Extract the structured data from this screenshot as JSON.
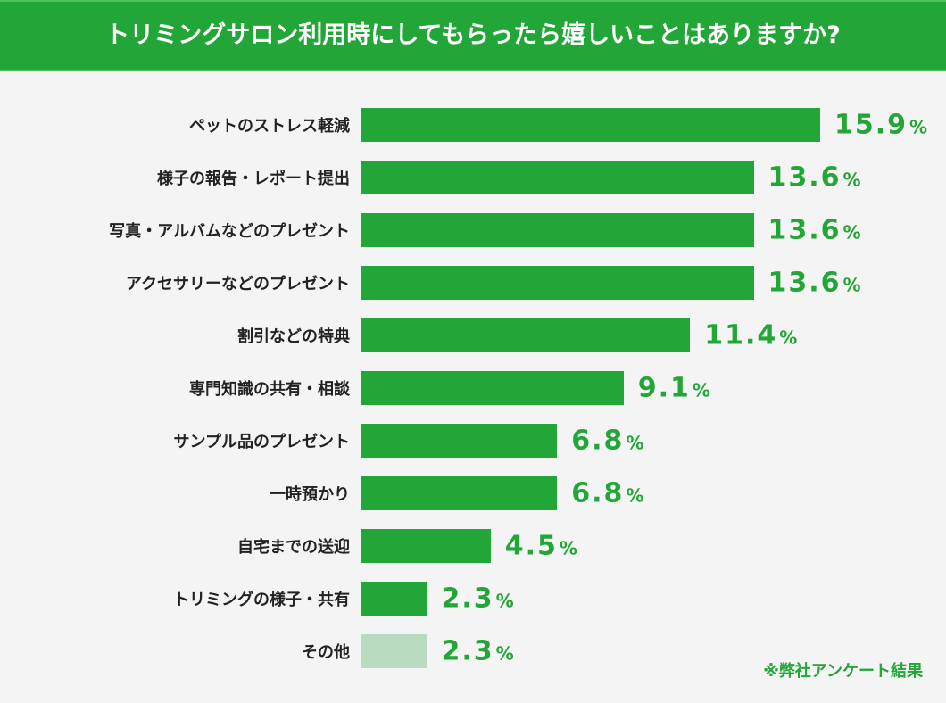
{
  "chart_data": {
    "type": "bar",
    "orientation": "horizontal",
    "title": "トリミングサロン利用時にしてもらったら嬉しいことはありますか?",
    "unit": "%",
    "categories": [
      "ペットのストレス軽減",
      "様子の報告・レポート提出",
      "写真・アルバムなどのプレゼント",
      "アクセサリーなどのプレゼント",
      "割引などの特典",
      "専門知識の共有・相談",
      "サンプル品のプレゼント",
      "一時預かり",
      "自宅までの送迎",
      "トリミングの様子・共有",
      "その他"
    ],
    "values": [
      15.9,
      13.6,
      13.6,
      13.6,
      11.4,
      9.1,
      6.8,
      6.8,
      4.5,
      2.3,
      2.3
    ],
    "value_labels": [
      "15.9",
      "13.6",
      "13.6",
      "13.6",
      "11.4",
      "9.1",
      "6.8",
      "6.8",
      "4.5",
      "2.3",
      "2.3"
    ],
    "bar_colors": [
      "#21a637",
      "#21a637",
      "#21a637",
      "#21a637",
      "#21a637",
      "#21a637",
      "#21a637",
      "#21a637",
      "#21a637",
      "#21a637",
      "#b9dcc0"
    ],
    "label_color": "#21a637",
    "grid": false,
    "note": "※弊社アンケート結果"
  }
}
